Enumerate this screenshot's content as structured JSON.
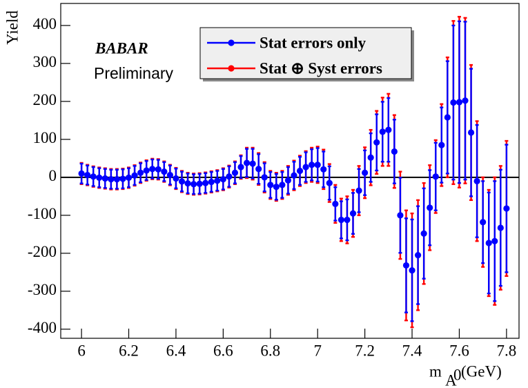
{
  "chart_data": {
    "type": "errorbar",
    "logo": "BABAR",
    "subtitle": "Preliminary",
    "y_label": "Yield",
    "x_label": {
      "main": "m",
      "sub": "A",
      "sup": "0",
      "unit": "(GeV)"
    },
    "x": [
      6.0,
      6.025,
      6.05,
      6.075,
      6.1,
      6.125,
      6.15,
      6.175,
      6.2,
      6.225,
      6.25,
      6.275,
      6.3,
      6.325,
      6.35,
      6.375,
      6.4,
      6.425,
      6.45,
      6.475,
      6.5,
      6.525,
      6.55,
      6.575,
      6.6,
      6.625,
      6.65,
      6.675,
      6.7,
      6.725,
      6.75,
      6.775,
      6.8,
      6.825,
      6.85,
      6.875,
      6.9,
      6.925,
      6.95,
      6.975,
      7.0,
      7.025,
      7.05,
      7.075,
      7.1,
      7.125,
      7.15,
      7.175,
      7.2,
      7.225,
      7.25,
      7.275,
      7.3,
      7.325,
      7.35,
      7.375,
      7.4,
      7.425,
      7.45,
      7.475,
      7.5,
      7.525,
      7.55,
      7.575,
      7.6,
      7.625,
      7.65,
      7.675,
      7.7,
      7.725,
      7.75,
      7.775,
      7.8
    ],
    "values": [
      10,
      6,
      2,
      -1,
      -3,
      -5,
      -5,
      -4,
      -1,
      5,
      12,
      18,
      22,
      21,
      15,
      6,
      -3,
      -11,
      -16,
      -18,
      -17,
      -15,
      -12,
      -9,
      -5,
      2,
      12,
      27,
      38,
      36,
      22,
      0,
      -20,
      -25,
      -20,
      -8,
      5,
      17,
      27,
      33,
      33,
      21,
      -15,
      -70,
      -112,
      -112,
      -95,
      -35,
      12,
      52,
      92,
      120,
      125,
      68,
      -100,
      -232,
      -245,
      -205,
      -148,
      -80,
      2,
      85,
      158,
      197,
      198,
      202,
      118,
      -10,
      -118,
      -173,
      -168,
      -133,
      -82
    ],
    "series": [
      {
        "name": "Stat ⊕ Syst errors",
        "color": "#ff0000",
        "errors": [
          28,
          27,
          27,
          27,
          27,
          27,
          27,
          27,
          27,
          27,
          27,
          27,
          27,
          27,
          27,
          27,
          28,
          28,
          28,
          28,
          28,
          28,
          28,
          28,
          29,
          29,
          30,
          31,
          40,
          42,
          42,
          40,
          37,
          37,
          37,
          38,
          39,
          40,
          42,
          45,
          48,
          52,
          50,
          50,
          56,
          62,
          62,
          65,
          67,
          73,
          83,
          90,
          95,
          96,
          115,
          145,
          150,
          145,
          133,
          112,
          96,
          108,
          158,
          215,
          225,
          218,
          178,
          158,
          118,
          140,
          168,
          163,
          178
        ]
      },
      {
        "name": "Stat errors only",
        "color": "#0000ff",
        "errors": [
          26,
          25,
          25,
          25,
          25,
          25,
          25,
          25,
          25,
          25,
          25,
          25,
          25,
          25,
          25,
          25,
          26,
          26,
          26,
          26,
          26,
          26,
          26,
          26,
          27,
          27,
          28,
          29,
          37,
          39,
          39,
          37,
          34,
          34,
          34,
          35,
          36,
          37,
          39,
          41,
          44,
          47,
          44,
          44,
          49,
          54,
          54,
          57,
          59,
          64,
          74,
          79,
          84,
          84,
          99,
          124,
          134,
          129,
          119,
          99,
          89,
          99,
          148,
          203,
          213,
          208,
          168,
          148,
          108,
          133,
          158,
          153,
          168
        ]
      }
    ],
    "legend_order": [
      1,
      0
    ],
    "xlim": [
      5.912,
      7.853
    ],
    "ylim": [
      -424,
      458
    ],
    "xticks": [
      6,
      {
        "value": 6.2,
        "label": "6.2"
      },
      {
        "value": 6.4,
        "label": "6.4"
      },
      {
        "value": 6.6,
        "label": "6.6"
      },
      {
        "value": 6.8,
        "label": "6.8"
      },
      7,
      {
        "value": 7.2,
        "label": "7.2"
      },
      {
        "value": 7.4,
        "label": "7.4"
      },
      {
        "value": 7.6,
        "label": "7.6"
      },
      {
        "value": 7.8,
        "label": "7.8"
      }
    ],
    "yticks": [
      -400,
      -300,
      -200,
      -100,
      0,
      100,
      200,
      300,
      400
    ],
    "hline": 0
  }
}
